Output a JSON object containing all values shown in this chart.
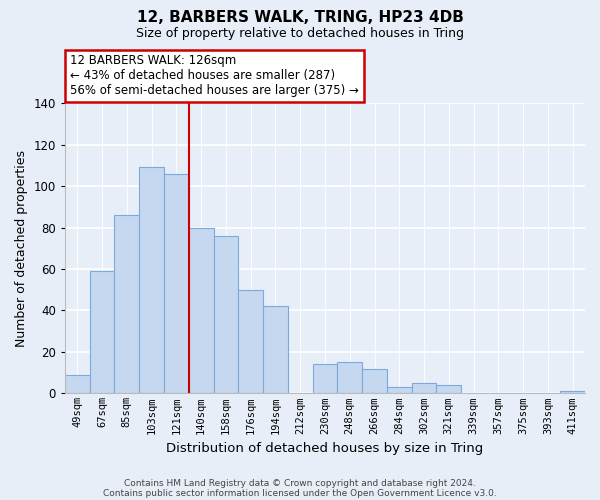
{
  "title": "12, BARBERS WALK, TRING, HP23 4DB",
  "subtitle": "Size of property relative to detached houses in Tring",
  "xlabel": "Distribution of detached houses by size in Tring",
  "ylabel": "Number of detached properties",
  "footer1": "Contains HM Land Registry data © Crown copyright and database right 2024.",
  "footer2": "Contains public sector information licensed under the Open Government Licence v3.0.",
  "categories": [
    "49sqm",
    "67sqm",
    "85sqm",
    "103sqm",
    "121sqm",
    "140sqm",
    "158sqm",
    "176sqm",
    "194sqm",
    "212sqm",
    "230sqm",
    "248sqm",
    "266sqm",
    "284sqm",
    "302sqm",
    "321sqm",
    "339sqm",
    "357sqm",
    "375sqm",
    "393sqm",
    "411sqm"
  ],
  "values": [
    9,
    59,
    86,
    109,
    106,
    80,
    76,
    50,
    42,
    0,
    14,
    15,
    12,
    3,
    5,
    4,
    0,
    0,
    0,
    0,
    1
  ],
  "bar_color": "#c5d8f0",
  "bar_edge_color": "#7aaadc",
  "marker_line_color": "#cc0000",
  "annotation_title": "12 BARBERS WALK: 126sqm",
  "annotation_line1": "← 43% of detached houses are smaller (287)",
  "annotation_line2": "56% of semi-detached houses are larger (375) →",
  "annotation_box_color": "#ffffff",
  "annotation_box_edge": "#cc0000",
  "ylim": [
    0,
    140
  ],
  "yticks": [
    0,
    20,
    40,
    60,
    80,
    100,
    120,
    140
  ],
  "background_color": "#e8eef8"
}
